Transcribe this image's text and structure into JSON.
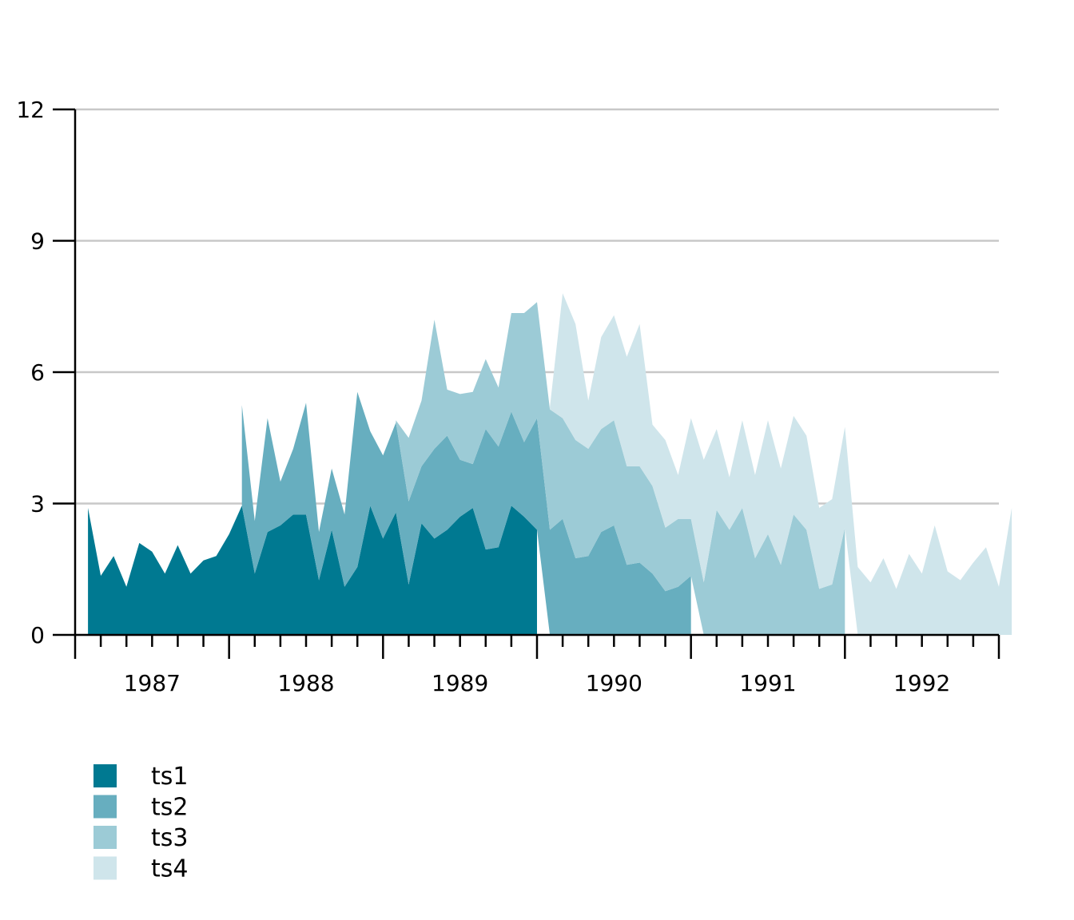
{
  "chart_data": {
    "type": "area",
    "stacked": true,
    "title": "",
    "xlabel": "",
    "ylabel": "",
    "x_start": "1986-07",
    "frequency": "monthly",
    "ylim": [
      0,
      12
    ],
    "yticks": [
      0,
      3,
      6,
      9,
      12
    ],
    "xlim": [
      "1986-06",
      "1992-06"
    ],
    "xticks_major": [
      "1986-06",
      "1987-06",
      "1988-06",
      "1989-06",
      "1990-06",
      "1991-06",
      "1992-06"
    ],
    "xtick_labels": [
      {
        "label": "1987",
        "at": "1986-12"
      },
      {
        "label": "1988",
        "at": "1987-12"
      },
      {
        "label": "1989",
        "at": "1988-12"
      },
      {
        "label": "1990",
        "at": "1989-12"
      },
      {
        "label": "1991",
        "at": "1990-12"
      },
      {
        "label": "1992",
        "at": "1991-12"
      }
    ],
    "grid": true,
    "legend_position": "bottom-left",
    "series": [
      {
        "name": "ts1",
        "color": "#007991",
        "start_offset": 0,
        "values": [
          2.9,
          1.35,
          1.8,
          1.1,
          2.1,
          1.9,
          1.4,
          2.05,
          1.4,
          1.7,
          1.8,
          2.3,
          2.95,
          1.4,
          2.35,
          2.5,
          2.75,
          2.75,
          1.25,
          2.4,
          1.1,
          1.55,
          2.95,
          2.2,
          2.8,
          1.15,
          2.55,
          2.2,
          2.4,
          2.7,
          2.9,
          1.95,
          2.0,
          2.95,
          2.7,
          2.4
        ]
      },
      {
        "name": "ts2",
        "color": "#67aebf",
        "start_offset": 12,
        "values": [
          2.3,
          1.2,
          2.6,
          1.0,
          1.5,
          2.55,
          1.1,
          1.4,
          1.65,
          4.0,
          1.7,
          1.9,
          2.05,
          1.9,
          1.3,
          2.05,
          2.15,
          1.3,
          1.0,
          2.75,
          2.3,
          2.15,
          1.7,
          2.55,
          2.4,
          2.65,
          1.75,
          1.8,
          2.35,
          2.5,
          1.6,
          1.65,
          1.4,
          1.0,
          1.1,
          1.35
        ]
      },
      {
        "name": "ts3",
        "color": "#9ccbd6",
        "start_offset": 24,
        "values": [
          0.05,
          1.45,
          1.5,
          2.95,
          1.05,
          1.5,
          1.65,
          1.6,
          1.35,
          2.25,
          2.95,
          2.65,
          2.75,
          2.3,
          2.7,
          2.45,
          2.35,
          2.4,
          2.25,
          2.2,
          2.0,
          1.45,
          1.55,
          1.3,
          1.2,
          2.85,
          2.4,
          2.9,
          1.75,
          2.3,
          1.6,
          2.75,
          2.4,
          1.05,
          1.15,
          2.45
        ]
      },
      {
        "name": "ts4",
        "color": "#cfe5eb",
        "start_offset": 36,
        "values": [
          0.05,
          2.85,
          2.65,
          1.1,
          2.1,
          2.4,
          2.5,
          3.25,
          1.4,
          2.0,
          1.0,
          2.3,
          2.8,
          1.85,
          1.2,
          2.0,
          1.9,
          2.6,
          2.2,
          2.25,
          2.15,
          1.85,
          1.95,
          2.3,
          1.55,
          1.2,
          1.75,
          1.05,
          1.85,
          1.4,
          2.5,
          1.45,
          1.25,
          1.65,
          2.0,
          1.1,
          2.9
        ]
      }
    ]
  },
  "legend": {
    "items": [
      {
        "label": "ts1",
        "color": "#007991"
      },
      {
        "label": "ts2",
        "color": "#67aebf"
      },
      {
        "label": "ts3",
        "color": "#9ccbd6"
      },
      {
        "label": "ts4",
        "color": "#cfe5eb"
      }
    ]
  },
  "colors": {
    "grid": "#c8c8c8",
    "axis": "#000000"
  }
}
